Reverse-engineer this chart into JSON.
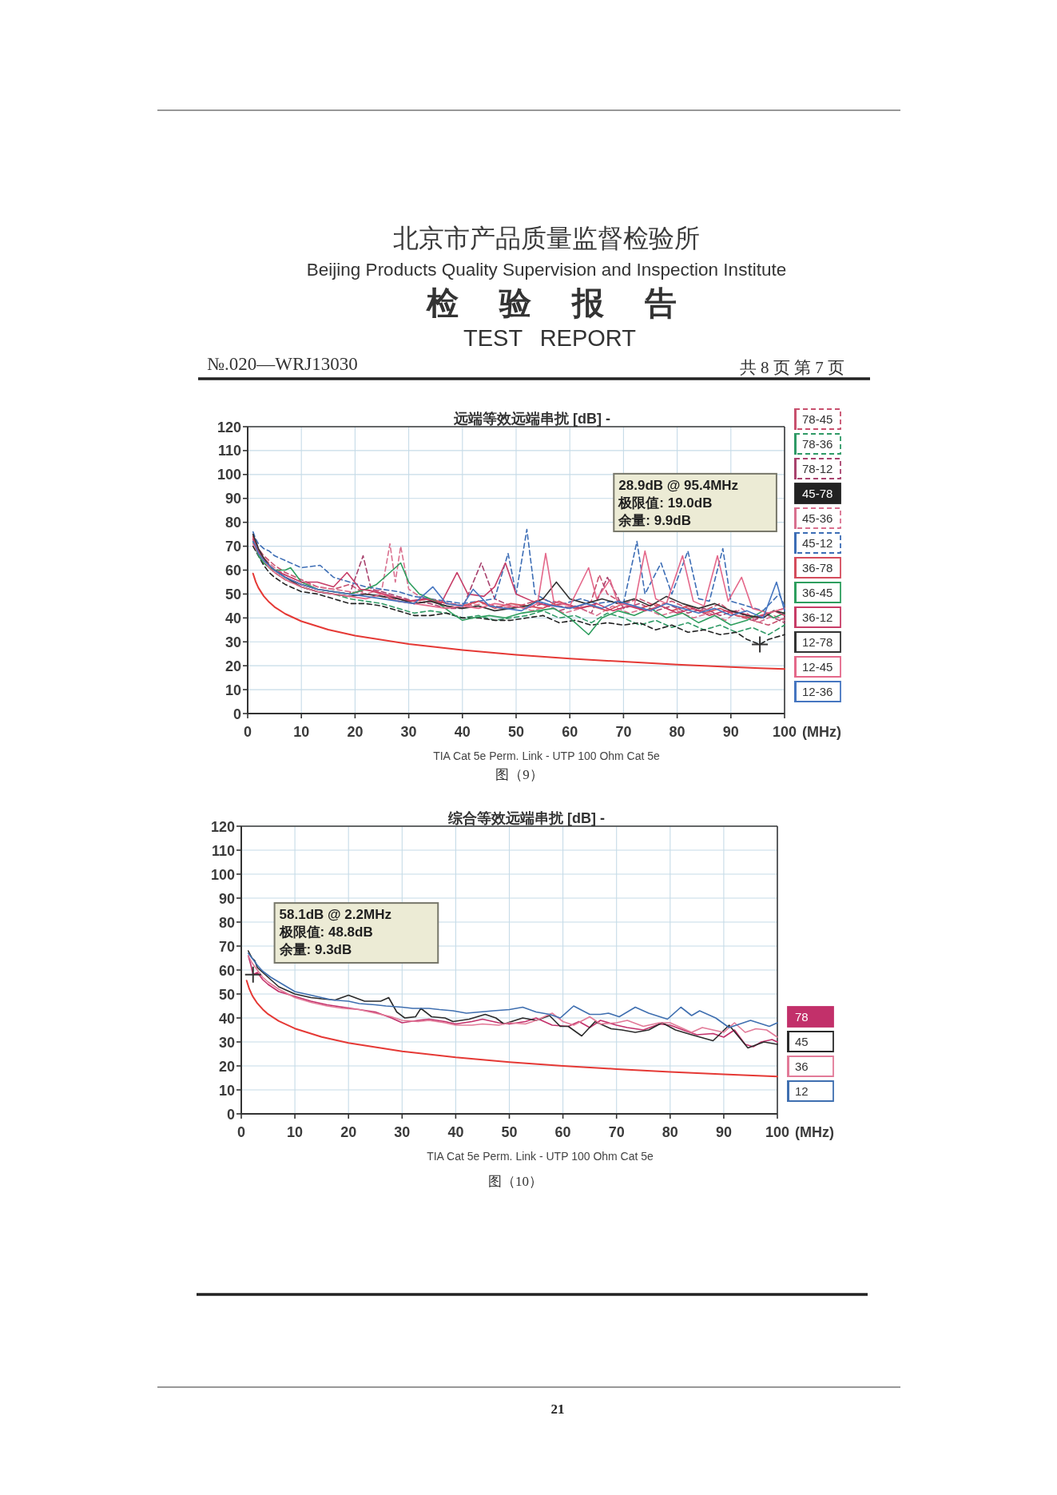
{
  "chart_data": [
    {
      "type": "other",
      "title": "北京市产品质量监督检验所",
      "subtitle": "Beijing Products Quality Supervision and Inspection Institute",
      "annotations": [
        "检验报告",
        "TEST REPORT",
        "№.020—WRJ13030",
        "共 8 页 第 7 页"
      ]
    },
    {
      "type": "line",
      "title": "远端等效远端串扰 [dB] -",
      "subtitle": "TIA Cat 5e Perm. Link - UTP 100 Ohm Cat 5e",
      "xlabel": "(MHz)",
      "xlim": [
        0,
        100
      ],
      "ylim": [
        0,
        120
      ],
      "xticks": [
        0,
        10,
        20,
        30,
        40,
        50,
        60,
        70,
        80,
        90,
        100
      ],
      "yticks": [
        0,
        10,
        20,
        30,
        40,
        50,
        60,
        70,
        80,
        90,
        100,
        110,
        120
      ],
      "grid": true,
      "legend": "right",
      "line_style": "solid",
      "annotations": [
        "28.9dB @ 95.4MHz",
        "极限值: 19.0dB",
        "余量: 9.9dB",
        "图（9）"
      ],
      "series": [
        {
          "name": "78-45",
          "color": "#c8506e",
          "line_style": "dashed",
          "x": [
            1,
            1.5,
            2,
            3,
            4,
            5,
            7,
            10,
            13,
            16,
            19,
            22,
            25,
            28,
            31,
            34,
            37,
            40,
            43,
            46,
            49,
            52,
            55,
            58,
            61,
            64,
            65.5,
            67,
            70,
            73,
            76,
            79,
            82,
            85,
            88,
            91,
            94,
            97,
            100
          ],
          "values": [
            74,
            71,
            69,
            66,
            64,
            62,
            59,
            56,
            53,
            52,
            54,
            50,
            49,
            47,
            46,
            47,
            45,
            44,
            47,
            45,
            44,
            46,
            48,
            45,
            44,
            47,
            58,
            50,
            46,
            48,
            45,
            47,
            44,
            43,
            46,
            41,
            39,
            37,
            40
          ]
        },
        {
          "name": "78-36",
          "color": "#2f9a66",
          "line_style": "dashed",
          "x": [
            1,
            1.5,
            2,
            3,
            4,
            5,
            7,
            10,
            13,
            16,
            19,
            22,
            25,
            28,
            31,
            34,
            37,
            40,
            43,
            46,
            49,
            52,
            55,
            58,
            61,
            64,
            67,
            70,
            73,
            76,
            79,
            82,
            85,
            88,
            91,
            94,
            97,
            100
          ],
          "values": [
            72,
            69,
            66,
            63,
            61,
            59,
            56,
            53,
            51,
            50,
            48,
            47,
            46,
            44,
            42,
            43,
            42,
            40,
            41,
            39,
            40,
            41,
            43,
            40,
            41,
            38,
            42,
            40,
            37,
            39,
            36,
            38,
            35,
            37,
            34,
            36,
            33,
            37
          ]
        },
        {
          "name": "78-12",
          "color": "#a8436e",
          "line_style": "dashed",
          "x": [
            1,
            1.5,
            2,
            3,
            4,
            5,
            7,
            10,
            13,
            16,
            19,
            21.5,
            23,
            25,
            28,
            31,
            34,
            37,
            40,
            43.5,
            46,
            49,
            52,
            55,
            58,
            61,
            64,
            67,
            70,
            73,
            76,
            79,
            82,
            85,
            88,
            91,
            94,
            97,
            100
          ],
          "values": [
            75,
            72,
            69,
            65,
            62,
            60,
            57,
            54,
            52,
            51,
            50,
            66,
            52,
            51,
            49,
            47,
            46,
            44,
            44,
            63,
            48,
            45,
            44,
            46,
            43,
            45,
            42,
            57,
            44,
            46,
            43,
            45,
            42,
            44,
            41,
            43,
            39,
            41,
            38
          ]
        },
        {
          "name": "45-78",
          "color": "#222222",
          "line_style": "dashed",
          "x": [
            1,
            1.5,
            2,
            3,
            4,
            5,
            7,
            10,
            13,
            16,
            19,
            22,
            25,
            28,
            31,
            34,
            37,
            40,
            43,
            46,
            49,
            52,
            55,
            58,
            61,
            64,
            67,
            70,
            73,
            76,
            79,
            82,
            85,
            88,
            91,
            93,
            95.4,
            97,
            100
          ],
          "values": [
            70,
            68,
            66,
            62,
            59,
            57,
            54,
            51,
            50,
            48,
            46,
            46,
            45,
            43,
            41,
            41,
            42,
            40,
            40,
            39,
            39,
            40,
            41,
            38,
            39,
            37,
            38,
            37,
            38,
            35,
            37,
            34,
            35,
            33,
            34,
            31,
            28.9,
            31,
            33
          ]
        },
        {
          "name": "45-36",
          "color": "#d9708f",
          "line_style": "dashed",
          "x": [
            1,
            1.5,
            2,
            3,
            4,
            5,
            7,
            10,
            13,
            16,
            19,
            22,
            25,
            26.5,
            27.5,
            28.5,
            30,
            32,
            35,
            38,
            41,
            44,
            47,
            50,
            53,
            56,
            59,
            62,
            65,
            68,
            71,
            74,
            77,
            80,
            83,
            86,
            89,
            92,
            95,
            98,
            100
          ],
          "values": [
            73,
            70,
            68,
            65,
            63,
            61,
            58,
            55,
            53,
            52,
            51,
            50,
            52,
            71,
            55,
            70,
            52,
            49,
            47,
            46,
            45,
            46,
            44,
            45,
            43,
            45,
            42,
            44,
            41,
            45,
            42,
            44,
            41,
            43,
            40,
            42,
            39,
            44,
            38,
            41,
            39
          ]
        },
        {
          "name": "45-12",
          "color": "#3c6db5",
          "line_style": "dashed",
          "x": [
            1,
            1.5,
            2,
            3,
            4,
            5,
            7,
            10,
            13.5,
            16,
            19,
            22,
            25,
            28,
            31,
            34,
            37,
            40,
            43,
            46,
            48.5,
            50,
            52,
            53.5,
            56,
            59,
            62,
            65,
            68,
            70,
            72.5,
            74,
            77,
            79,
            82,
            84,
            86,
            88.5,
            90,
            93,
            96,
            99,
            100
          ],
          "values": [
            76,
            73,
            71,
            69,
            68,
            66,
            64,
            61,
            62,
            57,
            55,
            53,
            52,
            51,
            49,
            48,
            47,
            46,
            47,
            48,
            67,
            50,
            77,
            50,
            47,
            46,
            48,
            46,
            47,
            46,
            72,
            50,
            63,
            50,
            68,
            48,
            47,
            69,
            47,
            45,
            43,
            50,
            45
          ]
        },
        {
          "name": "36-78",
          "color": "#d44c5c",
          "x": [
            1,
            1.5,
            2,
            3,
            4,
            5,
            7,
            10,
            13,
            16,
            19,
            22,
            25,
            28,
            31,
            34,
            37,
            40,
            43,
            46,
            49,
            52,
            55,
            58,
            61,
            64,
            67,
            70,
            73,
            76,
            79,
            82,
            85,
            88,
            91,
            94,
            97,
            100
          ],
          "values": [
            74,
            71,
            68,
            65,
            62,
            60,
            57,
            54,
            52,
            51,
            50,
            52,
            50,
            48,
            47,
            48,
            46,
            45,
            47,
            44,
            46,
            45,
            44,
            47,
            44,
            45,
            43,
            46,
            44,
            46,
            43,
            45,
            42,
            44,
            41,
            40,
            42,
            44
          ]
        },
        {
          "name": "36-45",
          "color": "#2e9e5e",
          "x": [
            1,
            1.5,
            2,
            3,
            4,
            5,
            7,
            8,
            10,
            13,
            16,
            19,
            22,
            24,
            26,
            28.5,
            30,
            32,
            35,
            38,
            40,
            42,
            45,
            48,
            51,
            54,
            57,
            60,
            63.5,
            66,
            69,
            72,
            75,
            78,
            81,
            84,
            87,
            90,
            93,
            96,
            98,
            100
          ],
          "values": [
            72,
            69,
            66,
            63,
            61,
            60,
            60,
            61,
            55,
            52,
            51,
            50,
            52,
            54,
            58,
            63,
            55,
            50,
            47,
            42,
            39,
            40,
            41,
            40,
            42,
            43,
            44,
            40,
            33,
            40,
            43,
            41,
            44,
            40,
            42,
            38,
            41,
            37,
            39,
            43,
            40,
            42
          ]
        },
        {
          "name": "36-12",
          "color": "#c73d67",
          "x": [
            1,
            1.5,
            2,
            3,
            4,
            5,
            7,
            10,
            13,
            16,
            18.5,
            21,
            24,
            27,
            30,
            33,
            36,
            39,
            41,
            44,
            46,
            48,
            50,
            53,
            56,
            59,
            62,
            65,
            68,
            71,
            74,
            77,
            80,
            83,
            86,
            89,
            92,
            95,
            98,
            100
          ],
          "values": [
            73,
            70,
            68,
            64,
            62,
            60,
            58,
            55,
            55,
            53,
            59,
            52,
            51,
            49,
            47,
            48,
            46,
            59,
            50,
            49,
            53,
            63,
            50,
            47,
            45,
            46,
            44,
            46,
            43,
            45,
            43,
            45,
            42,
            44,
            41,
            43,
            42,
            40,
            43,
            41
          ]
        },
        {
          "name": "12-78",
          "color": "#333333",
          "x": [
            1,
            1.5,
            2,
            3,
            4,
            5,
            7,
            10,
            13,
            16,
            19,
            22,
            25,
            28,
            31,
            34,
            37,
            40,
            43,
            46,
            49,
            52,
            55,
            57.5,
            60,
            63,
            66,
            69,
            72,
            75,
            78,
            81,
            84,
            87,
            90,
            93,
            96,
            98,
            100
          ],
          "values": [
            75,
            72,
            69,
            65,
            62,
            60,
            57,
            53,
            51,
            50,
            49,
            50,
            49,
            48,
            46,
            47,
            45,
            44,
            45,
            43,
            44,
            45,
            48,
            55,
            48,
            46,
            48,
            46,
            48,
            45,
            49,
            46,
            44,
            46,
            43,
            41,
            40,
            43,
            42
          ]
        },
        {
          "name": "12-45",
          "color": "#e4688a",
          "x": [
            1,
            1.5,
            2,
            3,
            4,
            5,
            7,
            10,
            13,
            16,
            19,
            22,
            25,
            28,
            31,
            34,
            37,
            40,
            43,
            46,
            49,
            52,
            54,
            55.5,
            57,
            60,
            63.5,
            65,
            67.5,
            69,
            72,
            74,
            76,
            78,
            81,
            83,
            85,
            87.5,
            89.5,
            92,
            94,
            97,
            100
          ],
          "values": [
            71,
            69,
            67,
            64,
            61,
            59,
            56,
            53,
            51,
            50,
            49,
            48,
            50,
            47,
            46,
            45,
            44,
            45,
            44,
            46,
            45,
            44,
            46,
            67,
            47,
            45,
            61,
            48,
            56,
            46,
            45,
            68,
            48,
            46,
            66,
            47,
            45,
            66,
            47,
            57,
            44,
            42,
            44
          ]
        },
        {
          "name": "12-36",
          "color": "#4676c0",
          "x": [
            1,
            1.5,
            2,
            3,
            4,
            5,
            7,
            10,
            13,
            16,
            19,
            22,
            25,
            28,
            31,
            34.5,
            37,
            40,
            42,
            45,
            48,
            51,
            54,
            57,
            60,
            63,
            66,
            69,
            72,
            75,
            78,
            81,
            84,
            87,
            90,
            93,
            96,
            98.5,
            100
          ],
          "values": [
            72,
            70,
            67,
            64,
            62,
            60,
            57,
            54,
            52,
            51,
            50,
            49,
            48,
            47,
            46,
            53,
            46,
            45,
            52,
            45,
            44,
            43,
            47,
            45,
            44,
            46,
            44,
            47,
            45,
            43,
            46,
            44,
            42,
            44,
            41,
            43,
            40,
            55,
            43
          ]
        },
        {
          "color": "#e53935",
          "x": [
            1,
            1.5,
            2,
            3,
            4,
            5,
            7,
            10,
            15,
            20,
            30,
            40,
            50,
            60,
            70,
            80,
            90,
            95.4,
            100
          ],
          "values": [
            58.6,
            55.1,
            52.6,
            49.1,
            46.6,
            44.6,
            41.7,
            38.6,
            35.1,
            32.6,
            29.1,
            26.6,
            24.6,
            23.0,
            21.7,
            20.5,
            19.5,
            19.0,
            18.6
          ]
        },
        {
          "type": "scatter",
          "marker": "cross",
          "color": "#333333",
          "x": [
            95.4
          ],
          "values": [
            28.9
          ]
        }
      ]
    },
    {
      "type": "line",
      "title": "综合等效远端串扰 [dB] -",
      "subtitle": "TIA Cat 5e Perm. Link - UTP 100 Ohm Cat 5e",
      "xlabel": "(MHz)",
      "xlim": [
        0,
        100
      ],
      "ylim": [
        0,
        120
      ],
      "xticks": [
        0,
        10,
        20,
        30,
        40,
        50,
        60,
        70,
        80,
        90,
        100
      ],
      "yticks": [
        0,
        10,
        20,
        30,
        40,
        50,
        60,
        70,
        80,
        90,
        100,
        110,
        120
      ],
      "grid": true,
      "legend": "right",
      "line_style": "solid",
      "annotations": [
        "58.1dB @ 2.2MHz",
        "极限值: 48.8dB",
        "余量: 9.3dB",
        "图（10）",
        "21"
      ],
      "series": [
        {
          "name": "78",
          "color": "#c2306a",
          "x": [
            1.3,
            1.8,
            2.2,
            3,
            4,
            5,
            7,
            10,
            13,
            16,
            19,
            22,
            25,
            28,
            30,
            33,
            35,
            38,
            40,
            43,
            45,
            48,
            50,
            53,
            55,
            58,
            61,
            63,
            65,
            67,
            70,
            72,
            75,
            78,
            80,
            83,
            85,
            88,
            90,
            92,
            94,
            95.5,
            97,
            99,
            100
          ],
          "values": [
            66,
            62,
            58.1,
            59,
            56,
            54,
            51,
            49,
            47,
            45.5,
            44.5,
            43.5,
            42.5,
            40,
            38,
            39,
            39.5,
            38.5,
            37.5,
            38.5,
            39.5,
            38,
            37.5,
            38.5,
            40,
            37,
            36.5,
            38.5,
            36,
            39,
            37,
            36,
            35,
            37.5,
            37,
            34.5,
            33,
            33.5,
            32,
            35,
            29,
            28,
            30,
            31,
            30
          ]
        },
        {
          "name": "45",
          "color": "#2b2b2b",
          "x": [
            1.3,
            2,
            2.5,
            3,
            4,
            5,
            7,
            10,
            13,
            15,
            17.5,
            20,
            23,
            26,
            27.5,
            29,
            30.5,
            32.5,
            33.5,
            35.5,
            38,
            39.5,
            42.5,
            45.5,
            47.5,
            49,
            52.5,
            55,
            57.5,
            59.5,
            61,
            63.5,
            66,
            69,
            71,
            73.5,
            76,
            78.5,
            81,
            84,
            88,
            91,
            94.5,
            97.5,
            100
          ],
          "values": [
            68,
            65,
            64,
            61,
            59,
            57,
            53,
            50,
            48.5,
            48,
            47.5,
            49.5,
            47,
            47,
            48.5,
            42.5,
            40,
            40.5,
            44,
            40.5,
            40,
            38.5,
            39.5,
            41.5,
            40,
            37.5,
            40,
            39,
            41,
            36.5,
            36.5,
            32.5,
            38.5,
            35.5,
            35,
            34,
            35,
            38,
            35,
            33,
            30.5,
            37,
            27.5,
            30,
            29
          ]
        },
        {
          "name": "36",
          "color": "#e27a98",
          "x": [
            1.3,
            2,
            3,
            4,
            5,
            7,
            10,
            13,
            16,
            19,
            22,
            25,
            28,
            30,
            33,
            35,
            38,
            40,
            43,
            45,
            48,
            50,
            53,
            55,
            58,
            60,
            62,
            65,
            67,
            70,
            72,
            75,
            78,
            80,
            82,
            84,
            86,
            88,
            90,
            92,
            94,
            96,
            98,
            100
          ],
          "values": [
            66,
            63,
            60,
            57,
            55,
            52,
            48.5,
            46.5,
            45,
            44,
            43.5,
            42,
            40.5,
            39,
            38.5,
            39,
            38,
            37,
            37,
            37.5,
            37,
            38,
            37.5,
            39,
            42,
            38.5,
            37,
            40.5,
            37.5,
            38,
            39,
            36.5,
            38,
            38,
            36,
            34,
            36,
            35,
            34,
            38,
            34,
            35.5,
            35,
            32
          ]
        },
        {
          "name": "12",
          "color": "#3f6fb0",
          "x": [
            1.3,
            2,
            3,
            4,
            5.5,
            7,
            10,
            12,
            15,
            17,
            20,
            22,
            25,
            27,
            30,
            32,
            35,
            37,
            39.5,
            42,
            44.5,
            47,
            50,
            52.5,
            55,
            57.5,
            59.5,
            62,
            65,
            67,
            68.5,
            70.5,
            73.5,
            76,
            79.5,
            82,
            84,
            85.5,
            88.5,
            91,
            95,
            98.5,
            100
          ],
          "values": [
            67,
            65,
            62,
            59.5,
            57,
            55,
            51,
            50,
            48.5,
            47.5,
            47,
            46,
            45.5,
            45,
            44.5,
            44,
            44,
            43.5,
            43,
            42,
            42.5,
            43,
            43.5,
            44.5,
            42.5,
            41.5,
            40,
            45,
            41.5,
            41.5,
            42,
            40.5,
            44.5,
            42,
            39.5,
            44.5,
            41,
            43,
            40,
            36,
            39,
            36.5,
            38
          ]
        },
        {
          "color": "#e53935",
          "x": [
            1,
            1.5,
            2,
            2.2,
            3,
            4,
            5,
            7,
            10,
            15,
            20,
            30,
            40,
            50,
            60,
            70,
            80,
            90,
            100
          ],
          "values": [
            55.6,
            52.1,
            49.6,
            48.8,
            46.1,
            43.6,
            41.6,
            38.7,
            35.6,
            32.1,
            29.6,
            26.1,
            23.6,
            21.6,
            20.0,
            18.7,
            17.5,
            16.5,
            15.6
          ]
        },
        {
          "type": "scatter",
          "marker": "cross",
          "color": "#333333",
          "x": [
            2.2
          ],
          "values": [
            58.1
          ]
        }
      ]
    }
  ]
}
